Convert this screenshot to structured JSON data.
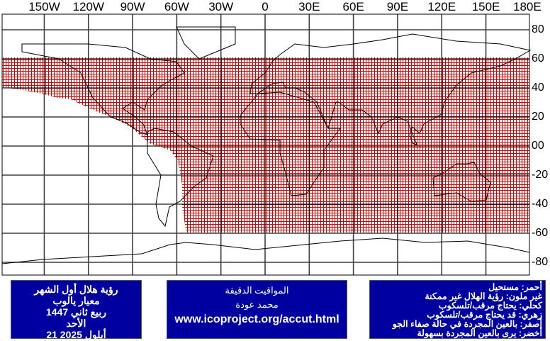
{
  "map": {
    "longitude_labels": [
      "150W",
      "120W",
      "90W",
      "60W",
      "30W",
      "0",
      "30E",
      "60E",
      "90E",
      "120E",
      "150E",
      "180E"
    ],
    "latitude_labels": [
      "80",
      "60",
      "40",
      "20",
      "00",
      "-20",
      "-40",
      "-60",
      "-80"
    ],
    "shaded_region": {
      "color": "#d40000",
      "meaning": "red",
      "lat_range": [
        -60,
        60
      ]
    }
  },
  "info_left": {
    "lines": [
      "رؤية هلال أول الشهر",
      "معيار يالوب",
      "ربيع ثاني 1447",
      "الأحد",
      "أيلول 2025 21"
    ]
  },
  "info_center": {
    "title": "المواقيت الدقيقة",
    "author": "محمد عودة",
    "url": "www.icoproject.org/accut.html"
  },
  "legend": {
    "lines": [
      "أحمر: مستحيل",
      "غير ملون: رؤية الهلال غير ممكنة",
      "كحلي: يحتاج مرقب/تلسكوب",
      "زهري: قد يحتاج مرقب/تلسكوب",
      "أصفر: بالعين المجردة في حالة صفاء الجو",
      "أخضر: يرى بالعين المجردة بسهولة"
    ]
  },
  "colors": {
    "panel_bg": "#0000a0",
    "red_zone": "#d40000"
  }
}
